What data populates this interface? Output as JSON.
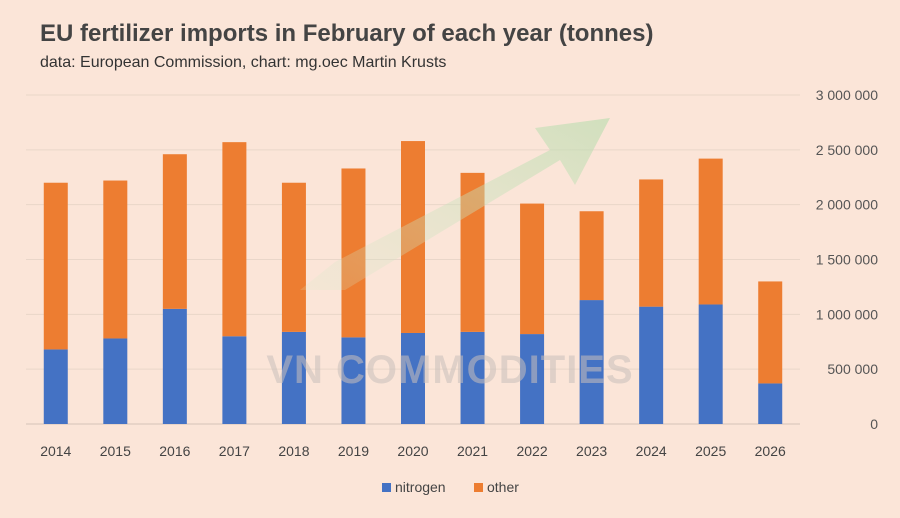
{
  "chart_data": {
    "type": "bar",
    "stacked": true,
    "title": "EU fertilizer imports in February of each year (tonnes)",
    "subtitle": "data: European Commission, chart: mg.oec Martin Krusts",
    "categories": [
      "2014",
      "2015",
      "2016",
      "2017",
      "2018",
      "2019",
      "2020",
      "2021",
      "2022",
      "2023",
      "2024",
      "2025",
      "2026"
    ],
    "series": [
      {
        "name": "nitrogen",
        "color": "#4472c4",
        "values": [
          680000,
          780000,
          1050000,
          800000,
          840000,
          790000,
          830000,
          840000,
          820000,
          1130000,
          1070000,
          1090000,
          370000
        ]
      },
      {
        "name": "other",
        "color": "#ed7d31",
        "values": [
          1520000,
          1440000,
          1410000,
          1770000,
          1360000,
          1540000,
          1750000,
          1450000,
          1190000,
          810000,
          1160000,
          1330000,
          930000
        ]
      }
    ],
    "ylim": [
      0,
      3000000
    ],
    "yticks": [
      0,
      500000,
      1000000,
      1500000,
      2000000,
      2500000,
      3000000
    ],
    "ytick_labels": [
      "0",
      "500 000",
      "1 000 000",
      "1 500 000",
      "2 000 000",
      "2 500 000",
      "3 000 000"
    ],
    "y_axis_side": "right",
    "grid": true,
    "legend": "bottom-center",
    "xlabel": "",
    "ylabel": ""
  },
  "watermark": "VN COMMODITIES"
}
